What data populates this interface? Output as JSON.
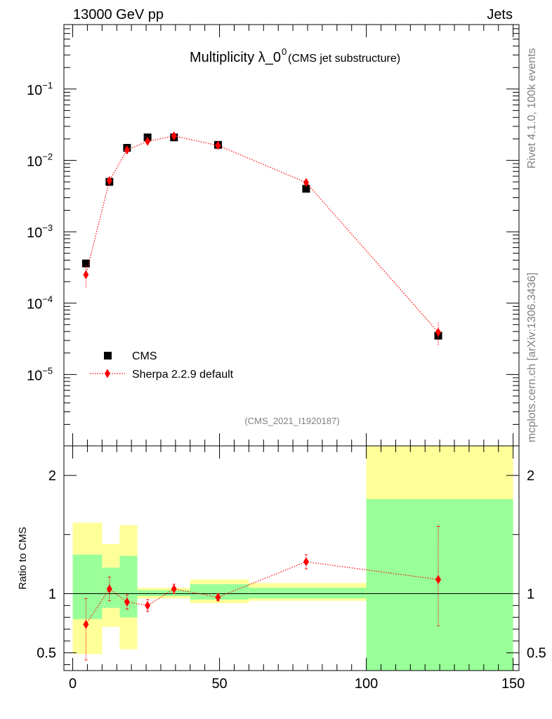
{
  "header": {
    "left": "13000 GeV pp",
    "right": "Jets"
  },
  "side_labels": {
    "rivet": "Rivet 4.1.0,  100k events",
    "mcplots": "mcplots.cern.ch [arXiv:1306.3436]"
  },
  "chart_data": [
    {
      "type": "scatter",
      "panel": "main",
      "title": "Multiplicity λ_0",
      "title_sup": "0",
      "subtitle": "(CMS jet substructure)",
      "analysis_id": "(CMS_2021_I1920187)",
      "yscale": "log",
      "ylim": [
        1e-06,
        0.8
      ],
      "xlim": [
        -3,
        152
      ],
      "y_ticks": [
        {
          "mantissa": "10",
          "exp": "−1",
          "value": 0.1
        },
        {
          "mantissa": "10",
          "exp": "−2",
          "value": 0.01
        },
        {
          "mantissa": "10",
          "exp": "−3",
          "value": 0.001
        },
        {
          "mantissa": "10",
          "exp": "−4",
          "value": 0.0001
        },
        {
          "mantissa": "10",
          "exp": "−5",
          "value": 1e-05
        }
      ],
      "legend": {
        "position": "lower-left",
        "entries": [
          "CMS",
          "Sherpa 2.2.9 default"
        ]
      },
      "series": [
        {
          "name": "CMS",
          "marker": "square",
          "color": "#000000",
          "x": [
            4.5,
            12.5,
            18.5,
            25.5,
            34.5,
            49.5,
            79.5,
            124.5
          ],
          "y": [
            0.00036,
            0.005,
            0.015,
            0.021,
            0.021,
            0.0165,
            0.004,
            3.5e-05
          ]
        },
        {
          "name": "Sherpa 2.2.9 default",
          "marker": "diamond",
          "color": "#ff0000",
          "line": "dotted",
          "x": [
            4.5,
            12.5,
            18.5,
            25.5,
            34.5,
            49.5,
            79.5,
            124.5
          ],
          "y": [
            0.00025,
            0.0052,
            0.014,
            0.0185,
            0.022,
            0.0162,
            0.0049,
            3.9e-05
          ],
          "yerr_low": [
            8.5e-05,
            0.00035,
            0.0009,
            0.0011,
            0.0009,
            0.0007,
            0.00028,
            1.4e-05
          ],
          "yerr_high": [
            8.5e-05,
            0.00035,
            0.0009,
            0.0011,
            0.0009,
            0.0007,
            0.00028,
            1.4e-05
          ]
        }
      ]
    },
    {
      "type": "scatter",
      "panel": "ratio",
      "ylabel": "Ratio to CMS",
      "ylim": [
        0.35,
        2.25
      ],
      "xlim": [
        -3,
        152
      ],
      "x_ticks": [
        "0",
        "50",
        "100",
        "150"
      ],
      "y_ticks": [
        "0.5",
        "1",
        "2"
      ],
      "reference_line": 1,
      "bands": [
        {
          "x0": 0,
          "x1": 10,
          "yellow": [
            0.49,
            1.6
          ],
          "green": [
            0.785,
            1.33
          ]
        },
        {
          "x0": 10,
          "x1": 16,
          "yellow": [
            0.72,
            1.42
          ],
          "green": [
            0.88,
            1.22
          ]
        },
        {
          "x0": 16,
          "x1": 22,
          "yellow": [
            0.53,
            1.58
          ],
          "green": [
            0.8,
            1.32
          ]
        },
        {
          "x0": 22,
          "x1": 40,
          "yellow": [
            0.96,
            1.05
          ],
          "green": [
            0.98,
            1.03
          ]
        },
        {
          "x0": 40,
          "x1": 60,
          "yellow": [
            0.92,
            1.12
          ],
          "green": [
            0.95,
            1.08
          ]
        },
        {
          "x0": 60,
          "x1": 100,
          "yellow": [
            0.94,
            1.09
          ],
          "green": [
            0.96,
            1.05
          ]
        },
        {
          "x0": 100,
          "x1": 150,
          "yellow": [
            0.35,
            2.25
          ],
          "green": [
            0.35,
            1.8
          ]
        }
      ],
      "series": [
        {
          "name": "Sherpa 2.2.9 default",
          "marker": "diamond",
          "color": "#ff0000",
          "line": "dotted",
          "x": [
            4.5,
            12.5,
            18.5,
            25.5,
            34.5,
            49.5,
            79.5,
            124.5
          ],
          "y": [
            0.74,
            1.04,
            0.93,
            0.9,
            1.04,
            0.97,
            1.27,
            1.12
          ],
          "yerr_low": [
            0.3,
            0.1,
            0.06,
            0.05,
            0.04,
            0.03,
            0.06,
            0.39
          ],
          "yerr_high": [
            0.22,
            0.1,
            0.06,
            0.05,
            0.04,
            0.03,
            0.06,
            0.45
          ]
        }
      ]
    }
  ]
}
